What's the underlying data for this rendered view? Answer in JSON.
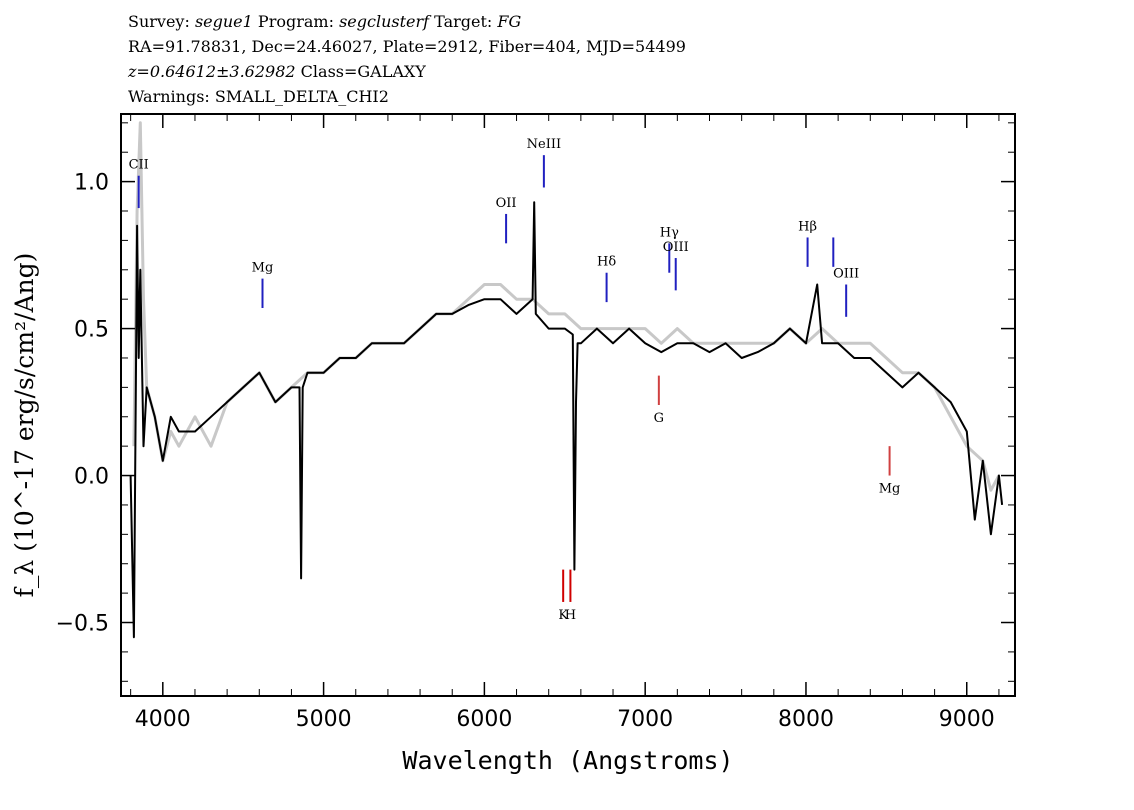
{
  "header": {
    "survey_label": "Survey:",
    "survey": "segue1",
    "program_label": "Program:",
    "program": "segclusterf",
    "target_label": "Target:",
    "target": "FG",
    "line2": "RA=91.78831, Dec=24.46027, Plate=2912, Fiber=404, MJD=54499",
    "redshift": "z=0.64612±3.62982",
    "class": "Class=GALAXY",
    "warnings": "Warnings: SMALL_DELTA_CHI2"
  },
  "chart_data": {
    "type": "line",
    "xlabel": "Wavelength (Angstroms)",
    "ylabel": "f_λ (10^-17 erg/s/cm²/Ang)",
    "xlim": [
      3740,
      9300
    ],
    "ylim": [
      -0.75,
      1.23
    ],
    "xticks": [
      {
        "value": 4000,
        "label": "4000"
      },
      {
        "value": 5000,
        "label": "5000"
      },
      {
        "value": 6000,
        "label": "6000"
      },
      {
        "value": 7000,
        "label": "7000"
      },
      {
        "value": 8000,
        "label": "8000"
      },
      {
        "value": 9000,
        "label": "9000"
      }
    ],
    "yticks": [
      {
        "value": 1.0,
        "label": "1.0"
      },
      {
        "value": 0.5,
        "label": "0.5"
      },
      {
        "value": 0.0,
        "label": "0.0"
      },
      {
        "value": -0.5,
        "label": "−0.5"
      }
    ],
    "series": [
      {
        "color": "#c8c8c8",
        "x": [
          3820,
          3840,
          3860,
          3880,
          3900,
          3950,
          4000,
          4050,
          4100,
          4200,
          4300,
          4400,
          4500,
          4600,
          4700,
          4800,
          4900,
          5000,
          5100,
          5200,
          5300,
          5400,
          5500,
          5600,
          5700,
          5800,
          5900,
          6000,
          6100,
          6200,
          6300,
          6400,
          6500,
          6600,
          6700,
          6800,
          6900,
          7000,
          7100,
          7200,
          7300,
          7400,
          7500,
          7600,
          7700,
          7800,
          7900,
          8000,
          8100,
          8200,
          8300,
          8400,
          8500,
          8600,
          8700,
          8800,
          8900,
          9000,
          9100,
          9150,
          9200
        ],
        "y": [
          0.1,
          0.9,
          1.2,
          0.6,
          0.3,
          0.2,
          0.05,
          0.15,
          0.1,
          0.2,
          0.1,
          0.25,
          0.3,
          0.35,
          0.25,
          0.3,
          0.35,
          0.35,
          0.4,
          0.4,
          0.45,
          0.45,
          0.45,
          0.5,
          0.55,
          0.55,
          0.6,
          0.65,
          0.65,
          0.6,
          0.6,
          0.55,
          0.55,
          0.5,
          0.5,
          0.5,
          0.5,
          0.5,
          0.45,
          0.5,
          0.45,
          0.45,
          0.45,
          0.45,
          0.45,
          0.45,
          0.5,
          0.45,
          0.5,
          0.45,
          0.45,
          0.45,
          0.4,
          0.35,
          0.35,
          0.3,
          0.2,
          0.1,
          0.05,
          -0.05,
          0.0
        ]
      },
      {
        "color": "#000000",
        "x": [
          3800,
          3820,
          3840,
          3850,
          3860,
          3880,
          3900,
          3950,
          4000,
          4050,
          4100,
          4200,
          4300,
          4400,
          4500,
          4600,
          4700,
          4800,
          4850,
          4860,
          4870,
          4900,
          5000,
          5100,
          5200,
          5300,
          5400,
          5500,
          5600,
          5700,
          5800,
          5900,
          6000,
          6100,
          6200,
          6300,
          6310,
          6320,
          6400,
          6500,
          6550,
          6560,
          6570,
          6580,
          6600,
          6700,
          6800,
          6900,
          7000,
          7100,
          7200,
          7300,
          7400,
          7500,
          7600,
          7700,
          7800,
          7900,
          8000,
          8070,
          8100,
          8200,
          8300,
          8400,
          8500,
          8600,
          8700,
          8800,
          8900,
          9000,
          9050,
          9100,
          9150,
          9200,
          9220
        ],
        "y": [
          0.0,
          -0.55,
          0.85,
          0.4,
          0.7,
          0.1,
          0.3,
          0.2,
          0.05,
          0.2,
          0.15,
          0.15,
          0.2,
          0.25,
          0.3,
          0.35,
          0.25,
          0.3,
          0.3,
          -0.35,
          0.3,
          0.35,
          0.35,
          0.4,
          0.4,
          0.45,
          0.45,
          0.45,
          0.5,
          0.55,
          0.55,
          0.58,
          0.6,
          0.6,
          0.55,
          0.6,
          0.93,
          0.55,
          0.5,
          0.5,
          0.48,
          -0.32,
          0.25,
          0.45,
          0.45,
          0.5,
          0.45,
          0.5,
          0.45,
          0.42,
          0.45,
          0.45,
          0.42,
          0.45,
          0.4,
          0.42,
          0.45,
          0.5,
          0.45,
          0.65,
          0.45,
          0.45,
          0.4,
          0.4,
          0.35,
          0.3,
          0.35,
          0.3,
          0.25,
          0.15,
          -0.15,
          0.05,
          -0.2,
          0.0,
          -0.1
        ]
      }
    ],
    "line_markers": [
      {
        "label": "CII",
        "x": 3850,
        "y_top": 1.02,
        "y_bottom": 0.91,
        "color": "#2020c0",
        "label_pos": "above"
      },
      {
        "label": "Mg",
        "x": 4620,
        "y_top": 0.67,
        "y_bottom": 0.57,
        "color": "#2020c0",
        "label_pos": "above"
      },
      {
        "label": "NeIII",
        "x": 6370,
        "y_top": 1.09,
        "y_bottom": 0.98,
        "color": "#2020c0",
        "label_pos": "above"
      },
      {
        "label": "OII",
        "x": 6135,
        "y_top": 0.89,
        "y_bottom": 0.79,
        "color": "#2020c0",
        "label_pos": "above"
      },
      {
        "label": "Hδ",
        "x": 6760,
        "y_top": 0.69,
        "y_bottom": 0.59,
        "color": "#2020c0",
        "label_pos": "above"
      },
      {
        "label": "Hγ",
        "x": 7150,
        "y_top": 0.79,
        "y_bottom": 0.69,
        "color": "#2020c0",
        "label_pos": "above"
      },
      {
        "label": "OIII",
        "x": 7190,
        "y_top": 0.74,
        "y_bottom": 0.63,
        "color": "#2020c0",
        "label_pos": "above"
      },
      {
        "label": "Hβ",
        "x": 8010,
        "y_top": 0.81,
        "y_bottom": 0.71,
        "color": "#2020c0",
        "label_pos": "above"
      },
      {
        "label": "",
        "x": 8170,
        "y_top": 0.81,
        "y_bottom": 0.71,
        "color": "#2020c0",
        "label_pos": "none"
      },
      {
        "label": "OIII",
        "x": 8250,
        "y_top": 0.65,
        "y_bottom": 0.54,
        "color": "#2020c0",
        "label_pos": "above"
      },
      {
        "label": "G",
        "x": 7085,
        "y_top": 0.34,
        "y_bottom": 0.24,
        "color": "#d04040",
        "label_pos": "below"
      },
      {
        "label": "Mg",
        "x": 8520,
        "y_top": 0.1,
        "y_bottom": 0.0,
        "color": "#d04040",
        "label_pos": "below"
      },
      {
        "label": "K",
        "x": 6490,
        "y_top": -0.32,
        "y_bottom": -0.43,
        "color": "#d00000",
        "label_pos": "below"
      },
      {
        "label": "H",
        "x": 6535,
        "y_top": -0.32,
        "y_bottom": -0.43,
        "color": "#d00000",
        "label_pos": "below"
      }
    ]
  }
}
